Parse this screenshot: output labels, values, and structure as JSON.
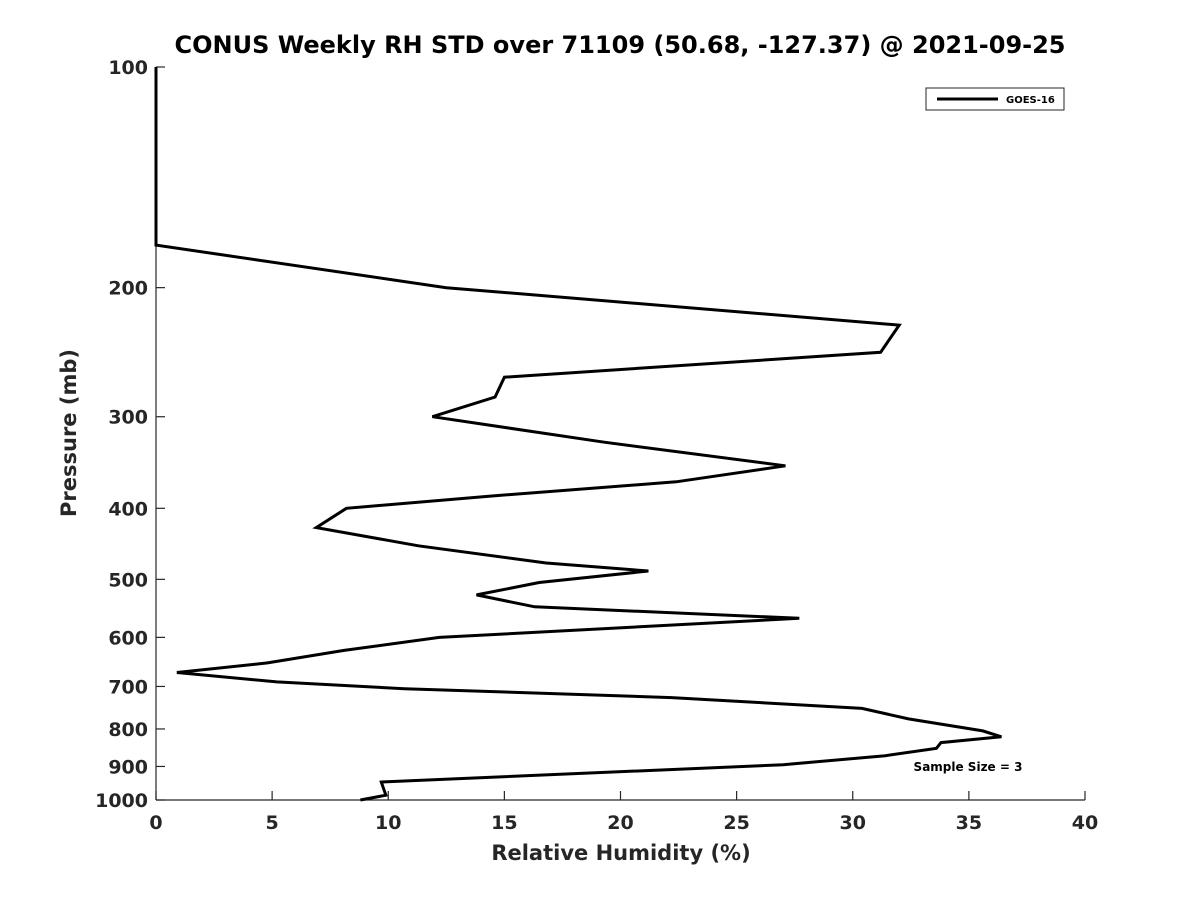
{
  "chart_data": {
    "type": "line",
    "title": "CONUS Weekly RH STD over 71109 (50.68, -127.37) @ 2021-09-25",
    "xlabel": "Relative Humidity (%)",
    "ylabel": "Pressure (mb)",
    "xlim": [
      0,
      40
    ],
    "ylim": [
      100,
      1000
    ],
    "y_scale": "log",
    "y_reversed": true,
    "x_ticks": [
      0,
      5,
      10,
      15,
      20,
      25,
      30,
      35,
      40
    ],
    "x_tick_labels": [
      "0",
      "5",
      "10",
      "15",
      "20",
      "25",
      "30",
      "35",
      "40"
    ],
    "y_ticks": [
      100,
      200,
      300,
      400,
      500,
      600,
      700,
      800,
      900,
      1000
    ],
    "y_tick_labels": [
      "100",
      "200",
      "300",
      "400",
      "500",
      "600",
      "700",
      "800",
      "900",
      "1000"
    ],
    "grid": false,
    "legend_position": "top-right",
    "annotation": "Sample Size = 3",
    "series": [
      {
        "name": "GOES-16",
        "color": "#000000",
        "x": [
          0,
          0,
          0,
          12.5,
          32,
          31.2,
          15,
          14.6,
          11.9,
          19.3,
          27.1,
          22.4,
          14.4,
          8.2,
          6.9,
          11.3,
          16.8,
          21.2,
          16.5,
          13.8,
          16.3,
          27.7,
          12.2,
          8.1,
          4.8,
          0.9,
          5.2,
          10.7,
          22.2,
          30.4,
          32.4,
          35.6,
          36.4,
          33.8,
          33.6,
          31.4,
          27.0,
          9.7,
          9.8,
          9.9,
          8.8
        ],
        "y": [
          100,
          150,
          175,
          200,
          225,
          245,
          265,
          282,
          300,
          325,
          350,
          368,
          385,
          400,
          425,
          450,
          475,
          487,
          505,
          525,
          545,
          565,
          600,
          625,
          650,
          670,
          690,
          705,
          725,
          750,
          775,
          805,
          820,
          835,
          850,
          870,
          895,
          945,
          965,
          985,
          1000
        ]
      }
    ]
  }
}
